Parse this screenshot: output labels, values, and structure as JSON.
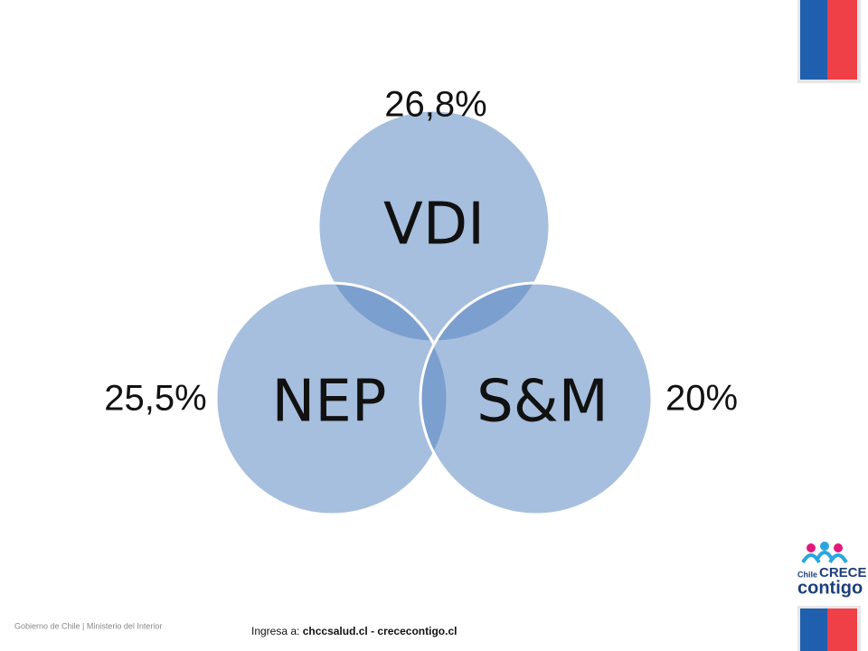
{
  "nodes": [
    {
      "label": "VDI",
      "percent": "26,8%"
    },
    {
      "label": "NEP",
      "percent": "25,5%"
    },
    {
      "label": "S&M",
      "percent": "20%"
    }
  ],
  "footer": {
    "left": "Gobierno de Chile | Ministerio del Interior",
    "prefix": "Ingresa a:",
    "links": "chccsalud.cl - crececontigo.cl"
  },
  "logo": {
    "small": "Chile",
    "big": "CRECE",
    "word": "contigo"
  }
}
